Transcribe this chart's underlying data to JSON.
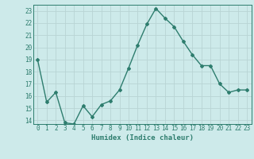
{
  "x": [
    0,
    1,
    2,
    3,
    4,
    5,
    6,
    7,
    8,
    9,
    10,
    11,
    12,
    13,
    14,
    15,
    16,
    17,
    18,
    19,
    20,
    21,
    22,
    23
  ],
  "y": [
    19,
    15.5,
    16.3,
    13.8,
    13.7,
    15.2,
    14.3,
    15.3,
    15.6,
    16.5,
    18.3,
    20.2,
    21.9,
    23.2,
    22.4,
    21.7,
    20.5,
    19.4,
    18.5,
    18.5,
    17.0,
    16.3,
    16.5,
    16.5
  ],
  "line_color": "#2e7d6e",
  "marker": "D",
  "marker_size": 2,
  "bg_color": "#cdeaea",
  "grid_color": "#b8d4d4",
  "xlabel": "Humidex (Indice chaleur)",
  "ylim": [
    13.7,
    23.5
  ],
  "xlim": [
    -0.5,
    23.5
  ],
  "yticks": [
    14,
    15,
    16,
    17,
    18,
    19,
    20,
    21,
    22,
    23
  ],
  "xticks": [
    0,
    1,
    2,
    3,
    4,
    5,
    6,
    7,
    8,
    9,
    10,
    11,
    12,
    13,
    14,
    15,
    16,
    17,
    18,
    19,
    20,
    21,
    22,
    23
  ],
  "tick_color": "#2e7d6e",
  "label_fontsize": 6.5,
  "tick_fontsize": 5.5
}
